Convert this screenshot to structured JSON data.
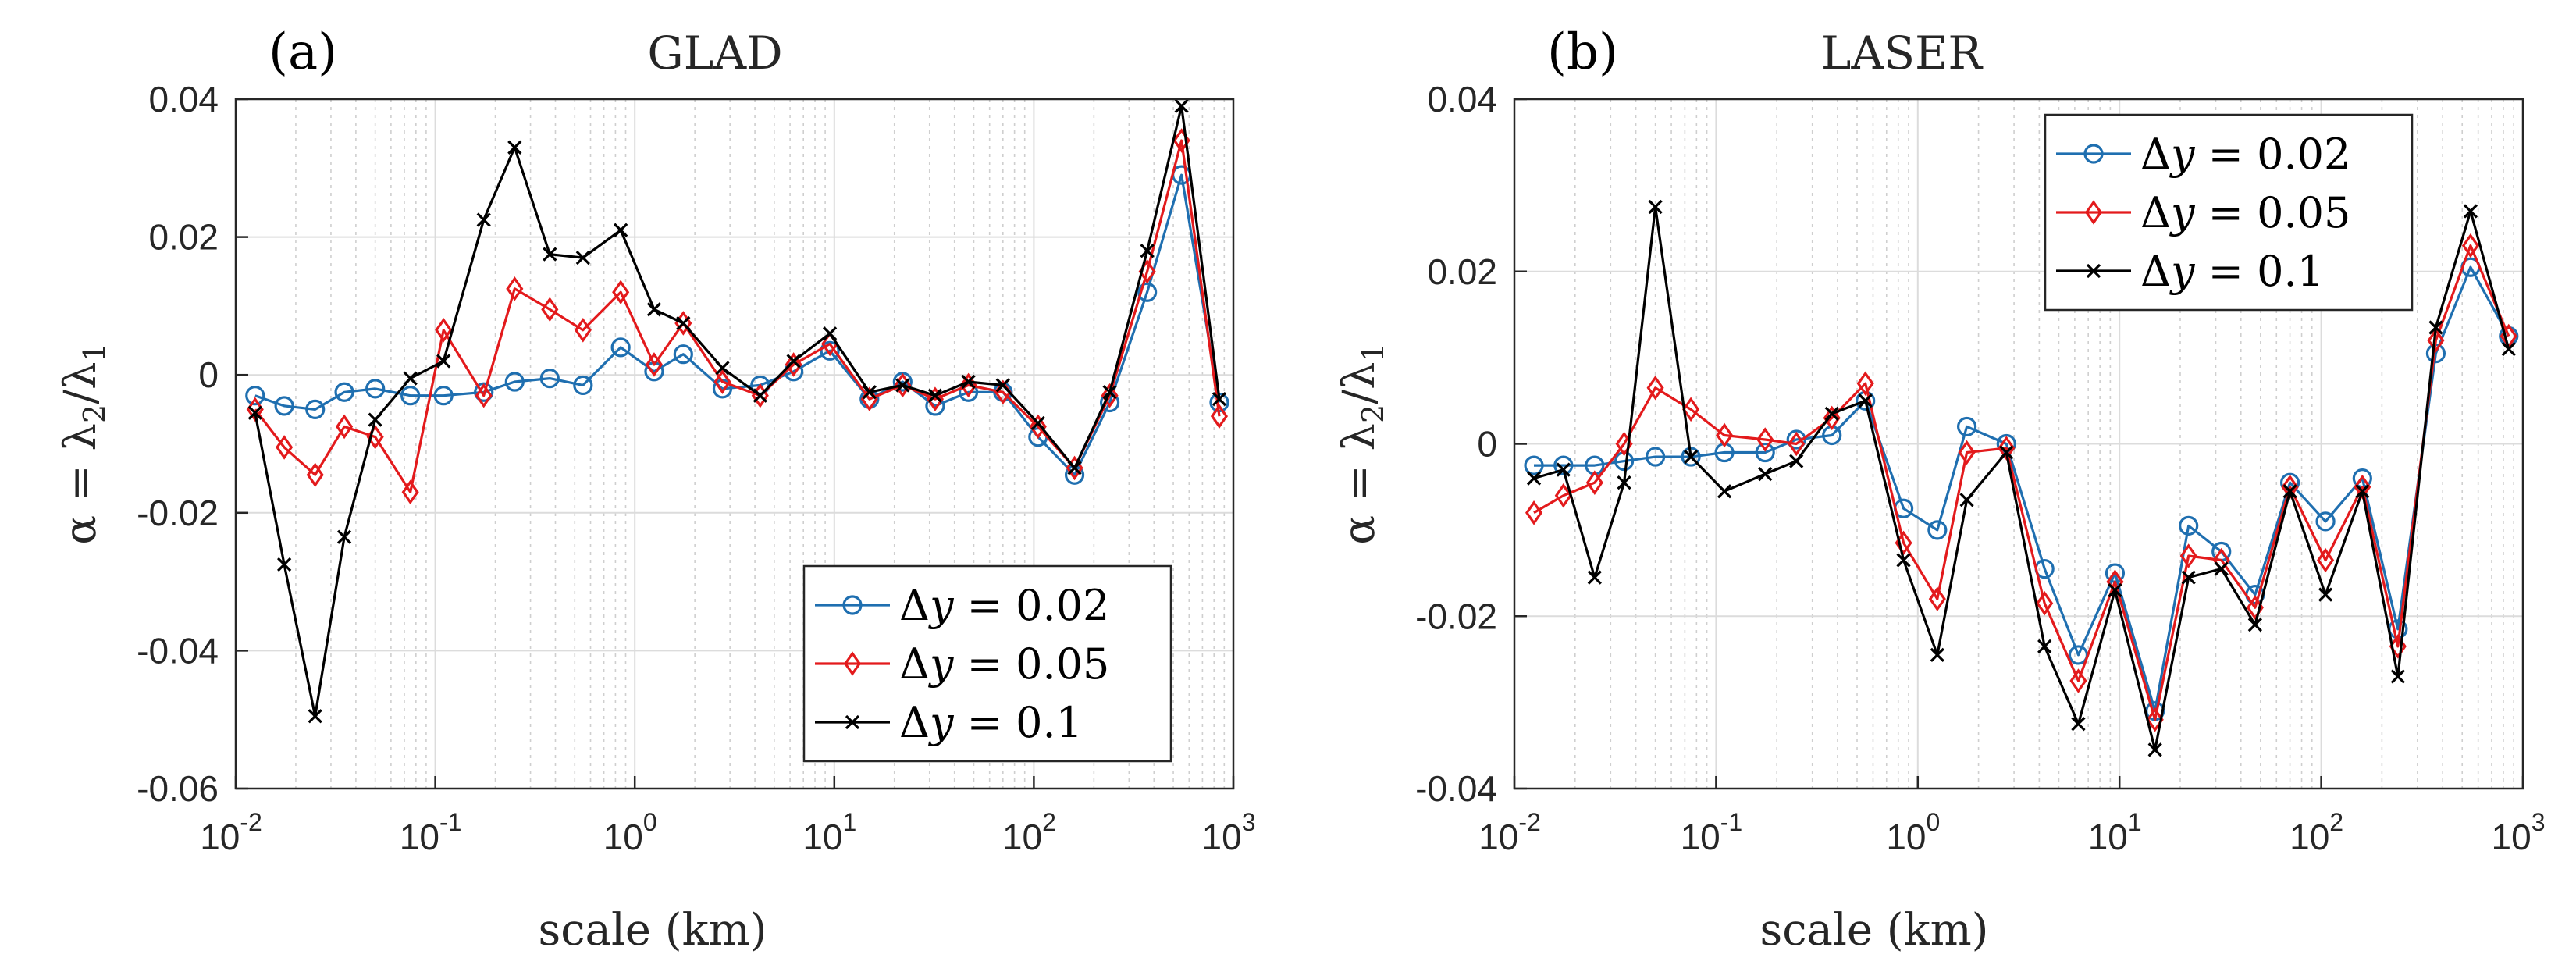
{
  "chart_data": [
    {
      "type": "line",
      "panel_label": "(a)",
      "title": "GLAD",
      "xlabel": "scale (km)",
      "ylabel": "α = λ2/λ1",
      "ylabel_main": "α = λ",
      "ylabel_sub1": "2",
      "ylabel_mid": "/λ",
      "ylabel_sub2": "1",
      "xscale": "log",
      "xlim": [
        0.01,
        1000
      ],
      "ylim": [
        -0.06,
        0.04
      ],
      "yticks": [
        -0.06,
        -0.04,
        -0.02,
        0,
        0.02,
        0.04
      ],
      "ytick_labels": [
        "-0.06",
        "-0.04",
        "-0.02",
        "0",
        "0.02",
        "0.04"
      ],
      "xtick_labels": [
        {
          "base": "10",
          "exp": "-2"
        },
        {
          "base": "10",
          "exp": "-1"
        },
        {
          "base": "10",
          "exp": "0"
        },
        {
          "base": "10",
          "exp": "1"
        },
        {
          "base": "10",
          "exp": "2"
        },
        {
          "base": "10",
          "exp": "3"
        }
      ],
      "grid": true,
      "legend_position": "lower-right",
      "x": [
        0.0125,
        0.0175,
        0.025,
        0.035,
        0.05,
        0.075,
        0.11,
        0.175,
        0.25,
        0.375,
        0.55,
        0.85,
        1.25,
        1.75,
        2.75,
        4.25,
        6.25,
        9.5,
        15,
        22,
        32,
        47,
        70,
        105,
        160,
        240,
        370,
        550,
        850
      ],
      "series": [
        {
          "name": "Δy = 0.02",
          "legend_lhs": "Δ",
          "legend_var": "y",
          "legend_rhs": " = 0.02",
          "color": "#1f6fb0",
          "marker": "circle",
          "values": [
            -0.003,
            -0.0045,
            -0.005,
            -0.0025,
            -0.002,
            -0.003,
            -0.003,
            -0.0025,
            -0.001,
            -0.0005,
            -0.0015,
            0.004,
            0.0005,
            0.003,
            -0.002,
            -0.0015,
            0.0005,
            0.0035,
            -0.0035,
            -0.001,
            -0.0045,
            -0.0025,
            -0.0025,
            -0.009,
            -0.0145,
            -0.004,
            0.012,
            0.029,
            -0.004
          ]
        },
        {
          "name": "Δy = 0.05",
          "legend_lhs": "Δ",
          "legend_var": "y",
          "legend_rhs": " = 0.05",
          "color": "#e31a1c",
          "marker": "diamond",
          "values": [
            -0.005,
            -0.0105,
            -0.0145,
            -0.0075,
            -0.009,
            -0.017,
            0.0065,
            -0.003,
            0.0125,
            0.0095,
            0.0065,
            0.012,
            0.0015,
            0.0075,
            -0.001,
            -0.003,
            0.0015,
            0.0045,
            -0.0035,
            -0.0015,
            -0.0035,
            -0.0015,
            -0.0025,
            -0.0075,
            -0.0135,
            -0.003,
            0.015,
            0.034,
            -0.006
          ]
        },
        {
          "name": "Δy = 0.1",
          "legend_lhs": "Δ",
          "legend_var": "y",
          "legend_rhs": " = 0.1",
          "color": "#000000",
          "marker": "x",
          "values": [
            -0.0055,
            -0.0275,
            -0.0495,
            -0.0235,
            -0.0065,
            -0.0005,
            0.002,
            0.0225,
            0.033,
            0.0175,
            0.017,
            0.021,
            0.0095,
            0.0075,
            0.001,
            -0.003,
            0.002,
            0.006,
            -0.0025,
            -0.0015,
            -0.003,
            -0.001,
            -0.0015,
            -0.007,
            -0.0135,
            -0.0025,
            0.018,
            0.039,
            -0.0035
          ]
        }
      ]
    },
    {
      "type": "line",
      "panel_label": "(b)",
      "title": "LASER",
      "xlabel": "scale (km)",
      "ylabel": "α = λ2/λ1",
      "ylabel_main": "α = λ",
      "ylabel_sub1": "2",
      "ylabel_mid": "/λ",
      "ylabel_sub2": "1",
      "xscale": "log",
      "xlim": [
        0.01,
        1000
      ],
      "ylim": [
        -0.04,
        0.04
      ],
      "yticks": [
        -0.04,
        -0.02,
        0,
        0.02,
        0.04
      ],
      "ytick_labels": [
        "-0.04",
        "-0.02",
        "0",
        "0.02",
        "0.04"
      ],
      "xtick_labels": [
        {
          "base": "10",
          "exp": "-2"
        },
        {
          "base": "10",
          "exp": "-1"
        },
        {
          "base": "10",
          "exp": "0"
        },
        {
          "base": "10",
          "exp": "1"
        },
        {
          "base": "10",
          "exp": "2"
        },
        {
          "base": "10",
          "exp": "3"
        }
      ],
      "grid": true,
      "legend_position": "top-right",
      "x": [
        0.0125,
        0.0175,
        0.025,
        0.035,
        0.05,
        0.075,
        0.11,
        0.175,
        0.25,
        0.375,
        0.55,
        0.85,
        1.25,
        1.75,
        2.75,
        4.25,
        6.25,
        9.5,
        15,
        22,
        32,
        47,
        70,
        105,
        160,
        240,
        370,
        550,
        850
      ],
      "series": [
        {
          "name": "Δy = 0.02",
          "legend_lhs": "Δ",
          "legend_var": "y",
          "legend_rhs": " = 0.02",
          "color": "#1f6fb0",
          "marker": "circle",
          "values": [
            -0.0025,
            -0.0025,
            -0.0025,
            -0.002,
            -0.0015,
            -0.0015,
            -0.001,
            -0.001,
            0.0005,
            0.001,
            0.005,
            -0.0075,
            -0.01,
            0.002,
            0.0,
            -0.0145,
            -0.0245,
            -0.015,
            -0.031,
            -0.0095,
            -0.0125,
            -0.0175,
            -0.0045,
            -0.009,
            -0.004,
            -0.0215,
            0.0105,
            0.0205,
            0.0125
          ]
        },
        {
          "name": "Δy = 0.05",
          "legend_lhs": "Δ",
          "legend_var": "y",
          "legend_rhs": " = 0.05",
          "color": "#e31a1c",
          "marker": "diamond",
          "values": [
            -0.008,
            -0.006,
            -0.0045,
            0.0,
            0.0065,
            0.004,
            0.001,
            0.0005,
            0.0,
            0.003,
            0.007,
            -0.0115,
            -0.018,
            -0.001,
            -0.0005,
            -0.0185,
            -0.0275,
            -0.016,
            -0.032,
            -0.013,
            -0.0135,
            -0.019,
            -0.005,
            -0.0135,
            -0.005,
            -0.0235,
            0.012,
            0.023,
            0.0125
          ]
        },
        {
          "name": "Δy = 0.1",
          "legend_lhs": "Δ",
          "legend_var": "y",
          "legend_rhs": " = 0.1",
          "color": "#000000",
          "marker": "x",
          "values": [
            -0.004,
            -0.003,
            -0.0155,
            -0.0045,
            0.0275,
            -0.0015,
            -0.0055,
            -0.0035,
            -0.002,
            0.0035,
            0.005,
            -0.0135,
            -0.0245,
            -0.0065,
            -0.001,
            -0.0235,
            -0.0325,
            -0.017,
            -0.0355,
            -0.0155,
            -0.0145,
            -0.021,
            -0.0055,
            -0.0175,
            -0.0055,
            -0.027,
            0.0135,
            0.027,
            0.011
          ]
        }
      ]
    }
  ]
}
